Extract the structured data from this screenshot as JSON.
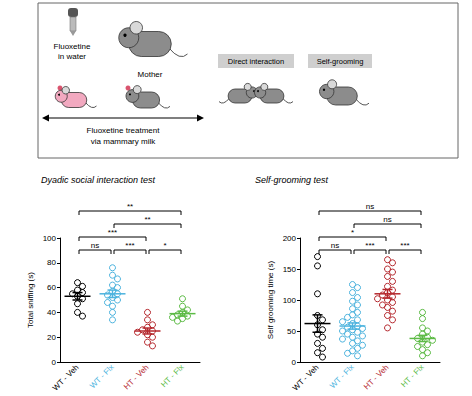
{
  "schematic": {
    "drug_label": [
      "Fluoxetine",
      "in water"
    ],
    "mother_label": "Mother",
    "treatment_label": [
      "Fluoxetine treatment",
      "via mammary milk"
    ],
    "tests": [
      "Direct interaction",
      "Self-grooming"
    ]
  },
  "chart_data": [
    {
      "type": "scatter",
      "title": "Dyadic social interaction test",
      "y_label": "Total sniffing (s)",
      "categories": [
        "WT - Veh",
        "WT - Flx",
        "HT - Veh",
        "HT - Flx"
      ],
      "colors": [
        "#000000",
        "#4cb3de",
        "#b5272d",
        "#5dbb46"
      ],
      "marker": "open circle",
      "values": [
        [
          64,
          61,
          58,
          56,
          55,
          53,
          51,
          47,
          40,
          37
        ],
        [
          76,
          70,
          67,
          62,
          60,
          57,
          55,
          54,
          52,
          50,
          48,
          45,
          40,
          34
        ],
        [
          40,
          34,
          30,
          28,
          26,
          25,
          24,
          22,
          20,
          16,
          13
        ],
        [
          51,
          45,
          42,
          40,
          38,
          37,
          36,
          35,
          33
        ]
      ],
      "means": [
        53,
        55,
        25,
        39
      ],
      "sem": [
        3,
        3,
        2.4,
        2
      ],
      "ylim": [
        0,
        100
      ],
      "yticks": [
        0,
        20,
        40,
        60,
        80,
        100
      ],
      "grid": false,
      "comparisons": [
        {
          "groups": [
            "WT - Veh",
            "WT - Flx"
          ],
          "label": "ns"
        },
        {
          "groups": [
            "WT - Flx",
            "HT - Veh"
          ],
          "label": "***"
        },
        {
          "groups": [
            "HT - Veh",
            "HT - Flx"
          ],
          "label": "*"
        },
        {
          "groups": [
            "WT - Veh",
            "HT - Veh"
          ],
          "label": "***"
        },
        {
          "groups": [
            "WT - Flx",
            "HT - Flx"
          ],
          "label": "**"
        },
        {
          "groups": [
            "WT - Veh",
            "HT - Flx"
          ],
          "label": "**"
        }
      ]
    },
    {
      "type": "scatter",
      "title": "Self-grooming test",
      "y_label": "Self grooming time (s)",
      "categories": [
        "WT - Veh",
        "WT - Flx",
        "HT - Veh",
        "HT - Flx"
      ],
      "colors": [
        "#000000",
        "#4cb3de",
        "#b5272d",
        "#5dbb46"
      ],
      "marker": "open circle",
      "values": [
        [
          170,
          155,
          110,
          75,
          68,
          60,
          52,
          45,
          40,
          30,
          22,
          15,
          8
        ],
        [
          125,
          120,
          112,
          104,
          98,
          92,
          86,
          80,
          76,
          72,
          68,
          65,
          62,
          58,
          56,
          54,
          52,
          50,
          48,
          45,
          42,
          40,
          37,
          34,
          30,
          27,
          22,
          18,
          14,
          10
        ],
        [
          165,
          160,
          150,
          145,
          138,
          130,
          122,
          116,
          112,
          108,
          105,
          102,
          100,
          96,
          92,
          88,
          82,
          75,
          68,
          55
        ],
        [
          80,
          70,
          55,
          50,
          45,
          40,
          38,
          35,
          32,
          28,
          25,
          20,
          15,
          10
        ]
      ],
      "means": [
        62,
        58,
        110,
        38
      ],
      "sem": [
        14,
        5,
        7,
        5
      ],
      "ylim": [
        0,
        200
      ],
      "yticks": [
        0,
        50,
        100,
        150,
        200
      ],
      "grid": false,
      "comparisons": [
        {
          "groups": [
            "WT - Veh",
            "WT - Flx"
          ],
          "label": "ns"
        },
        {
          "groups": [
            "WT - Flx",
            "HT - Veh"
          ],
          "label": "***"
        },
        {
          "groups": [
            "HT - Veh",
            "HT - Flx"
          ],
          "label": "***"
        },
        {
          "groups": [
            "WT - Veh",
            "HT - Veh"
          ],
          "label": "*"
        },
        {
          "groups": [
            "WT - Flx",
            "HT - Flx"
          ],
          "label": "ns"
        },
        {
          "groups": [
            "WT - Veh",
            "HT - Flx"
          ],
          "label": "ns"
        }
      ]
    }
  ]
}
